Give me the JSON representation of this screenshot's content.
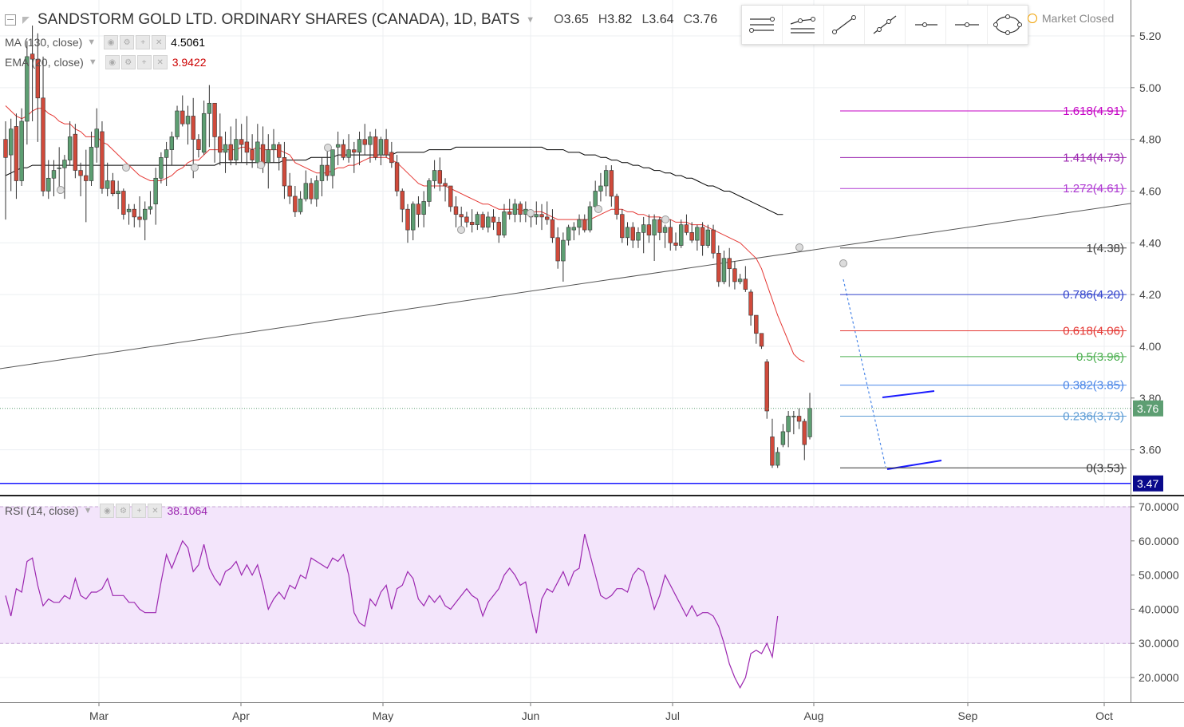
{
  "header": {
    "symbol_title": "SANDSTORM GOLD LTD. ORDINARY SHARES (CANADA), 1D, BATS",
    "ohlc": {
      "o_label": "O",
      "o": "3.65",
      "h_label": "H",
      "h": "3.82",
      "l_label": "L",
      "l": "3.64",
      "c_label": "C",
      "c": "3.76"
    },
    "market_status": "Market Closed"
  },
  "indicators": {
    "ma": {
      "label": "MA (130, close)",
      "value": "4.5061",
      "color": "#000000"
    },
    "ema": {
      "label": "EMA (20, close)",
      "value": "3.9422",
      "color": "#cc0000"
    },
    "rsi": {
      "label": "RSI (14, close)",
      "value": "38.1064",
      "color": "#9c27b0"
    }
  },
  "toolbar": {
    "tools": [
      "horizontal-lines-icon",
      "parallel-channel-icon",
      "trend-line-icon",
      "ray-icon",
      "horizontal-ray-icon",
      "horizontal-line-icon",
      "ellipse-icon"
    ]
  },
  "colors": {
    "up": "#5d9e72",
    "down": "#d04a3b",
    "ma": "#000000",
    "ema": "#e53935",
    "rsi": "#9c27b0",
    "rsi_band": "#f3e5fb",
    "support": "#1a1aff"
  },
  "chart_data": {
    "type": "candlestick",
    "x_axis": {
      "ticks": [
        "Mar",
        "Apr",
        "May",
        "Jun",
        "Jul",
        "Aug",
        "Sep",
        "Oct"
      ]
    },
    "y_axis": {
      "min": 3.44,
      "max": 5.27,
      "ticks": [
        "5.20",
        "5.00",
        "4.80",
        "4.60",
        "4.40",
        "4.20",
        "4.00",
        "3.80",
        "3.60"
      ]
    },
    "last_price": "3.76",
    "support_price": "3.47",
    "candles": [
      [
        4.8,
        4.87,
        4.49,
        4.73
      ],
      [
        4.74,
        4.88,
        4.6,
        4.84
      ],
      [
        4.85,
        4.9,
        4.57,
        4.64
      ],
      [
        4.64,
        4.92,
        4.62,
        4.87
      ],
      [
        4.87,
        5.18,
        4.78,
        5.12
      ],
      [
        5.13,
        5.24,
        4.87,
        5.11
      ],
      [
        5.11,
        5.21,
        4.79,
        4.96
      ],
      [
        4.96,
        5.12,
        4.58,
        4.6
      ],
      [
        4.6,
        4.72,
        4.57,
        4.65
      ],
      [
        4.65,
        4.72,
        4.58,
        4.68
      ],
      [
        4.69,
        4.77,
        4.59,
        4.69
      ],
      [
        4.69,
        4.74,
        4.57,
        4.72
      ],
      [
        4.72,
        4.87,
        4.7,
        4.81
      ],
      [
        4.82,
        4.86,
        4.65,
        4.68
      ],
      [
        4.68,
        4.71,
        4.58,
        4.66
      ],
      [
        4.66,
        4.76,
        4.48,
        4.64
      ],
      [
        4.64,
        4.83,
        4.62,
        4.77
      ],
      [
        4.77,
        4.92,
        4.71,
        4.84
      ],
      [
        4.83,
        4.87,
        4.59,
        4.61
      ],
      [
        4.61,
        4.71,
        4.58,
        4.64
      ],
      [
        4.64,
        4.67,
        4.58,
        4.59
      ],
      [
        4.59,
        4.64,
        4.53,
        4.6
      ],
      [
        4.6,
        4.61,
        4.49,
        4.51
      ],
      [
        4.52,
        4.55,
        4.47,
        4.53
      ],
      [
        4.53,
        4.55,
        4.46,
        4.5
      ],
      [
        4.5,
        4.58,
        4.46,
        4.49
      ],
      [
        4.49,
        4.56,
        4.41,
        4.53
      ],
      [
        4.53,
        4.6,
        4.51,
        4.54
      ],
      [
        4.55,
        4.69,
        4.47,
        4.65
      ],
      [
        4.65,
        4.75,
        4.63,
        4.73
      ],
      [
        4.73,
        4.79,
        4.62,
        4.76
      ],
      [
        4.76,
        4.83,
        4.7,
        4.81
      ],
      [
        4.81,
        4.93,
        4.8,
        4.91
      ],
      [
        4.91,
        4.97,
        4.85,
        4.86
      ],
      [
        4.86,
        4.93,
        4.78,
        4.89
      ],
      [
        4.89,
        4.96,
        4.65,
        4.8
      ],
      [
        4.8,
        4.82,
        4.73,
        4.76
      ],
      [
        4.75,
        4.95,
        4.74,
        4.9
      ],
      [
        4.9,
        5.01,
        4.77,
        4.94
      ],
      [
        4.94,
        4.94,
        4.71,
        4.81
      ],
      [
        4.81,
        4.9,
        4.7,
        4.75
      ],
      [
        4.75,
        4.83,
        4.67,
        4.78
      ],
      [
        4.78,
        4.85,
        4.7,
        4.72
      ],
      [
        4.72,
        4.88,
        4.7,
        4.8
      ],
      [
        4.8,
        4.86,
        4.71,
        4.78
      ],
      [
        4.79,
        4.89,
        4.7,
        4.75
      ],
      [
        4.76,
        4.82,
        4.69,
        4.72
      ],
      [
        4.71,
        4.86,
        4.69,
        4.79
      ],
      [
        4.78,
        4.85,
        4.67,
        4.7
      ],
      [
        4.71,
        4.82,
        4.61,
        4.76
      ],
      [
        4.76,
        4.84,
        4.71,
        4.78
      ],
      [
        4.78,
        4.79,
        4.68,
        4.73
      ],
      [
        4.73,
        4.79,
        4.57,
        4.62
      ],
      [
        4.62,
        4.67,
        4.55,
        4.58
      ],
      [
        4.58,
        4.62,
        4.5,
        4.52
      ],
      [
        4.52,
        4.6,
        4.51,
        4.57
      ],
      [
        4.57,
        4.68,
        4.56,
        4.63
      ],
      [
        4.63,
        4.65,
        4.55,
        4.57
      ],
      [
        4.57,
        4.66,
        4.54,
        4.64
      ],
      [
        4.64,
        4.73,
        4.58,
        4.7
      ],
      [
        4.7,
        4.77,
        4.64,
        4.66
      ],
      [
        4.66,
        4.76,
        4.61,
        4.76
      ],
      [
        4.77,
        4.83,
        4.7,
        4.78
      ],
      [
        4.78,
        4.8,
        4.72,
        4.73
      ],
      [
        4.73,
        4.82,
        4.71,
        4.76
      ],
      [
        4.76,
        4.79,
        4.67,
        4.75
      ],
      [
        4.75,
        4.83,
        4.7,
        4.8
      ],
      [
        4.8,
        4.86,
        4.74,
        4.78
      ],
      [
        4.78,
        4.83,
        4.71,
        4.81
      ],
      [
        4.81,
        4.84,
        4.72,
        4.73
      ],
      [
        4.74,
        4.81,
        4.7,
        4.8
      ],
      [
        4.8,
        4.84,
        4.73,
        4.74
      ],
      [
        4.75,
        4.79,
        4.69,
        4.71
      ],
      [
        4.71,
        4.74,
        4.58,
        4.6
      ],
      [
        4.6,
        4.61,
        4.48,
        4.53
      ],
      [
        4.53,
        4.55,
        4.4,
        4.45
      ],
      [
        4.45,
        4.56,
        4.41,
        4.55
      ],
      [
        4.55,
        4.58,
        4.46,
        4.51
      ],
      [
        4.51,
        4.6,
        4.46,
        4.56
      ],
      [
        4.56,
        4.65,
        4.54,
        4.64
      ],
      [
        4.64,
        4.72,
        4.61,
        4.68
      ],
      [
        4.68,
        4.73,
        4.6,
        4.63
      ],
      [
        4.63,
        4.65,
        4.56,
        4.62
      ],
      [
        4.62,
        4.62,
        4.52,
        4.54
      ],
      [
        4.54,
        4.58,
        4.46,
        4.51
      ],
      [
        4.51,
        4.54,
        4.46,
        4.5
      ],
      [
        4.5,
        4.52,
        4.46,
        4.48
      ],
      [
        4.48,
        4.53,
        4.44,
        4.47
      ],
      [
        4.47,
        4.52,
        4.45,
        4.51
      ],
      [
        4.51,
        4.52,
        4.45,
        4.46
      ],
      [
        4.46,
        4.52,
        4.44,
        4.5
      ],
      [
        4.5,
        4.53,
        4.45,
        4.48
      ],
      [
        4.48,
        4.5,
        4.4,
        4.43
      ],
      [
        4.43,
        4.55,
        4.42,
        4.52
      ],
      [
        4.52,
        4.57,
        4.49,
        4.51
      ],
      [
        4.51,
        4.57,
        4.48,
        4.55
      ],
      [
        4.55,
        4.56,
        4.48,
        4.51
      ],
      [
        4.51,
        4.56,
        4.48,
        4.53
      ],
      [
        4.52,
        4.53,
        4.46,
        4.5
      ],
      [
        4.5,
        4.56,
        4.47,
        4.51
      ],
      [
        4.51,
        4.55,
        4.45,
        4.5
      ],
      [
        4.5,
        4.56,
        4.47,
        4.49
      ],
      [
        4.49,
        4.53,
        4.4,
        4.42
      ],
      [
        4.42,
        4.46,
        4.3,
        4.33
      ],
      [
        4.33,
        4.44,
        4.25,
        4.41
      ],
      [
        4.41,
        4.47,
        4.39,
        4.46
      ],
      [
        4.45,
        4.48,
        4.41,
        4.46
      ],
      [
        4.46,
        4.51,
        4.43,
        4.49
      ],
      [
        4.49,
        4.51,
        4.44,
        4.45
      ],
      [
        4.45,
        4.56,
        4.44,
        4.54
      ],
      [
        4.54,
        4.64,
        4.53,
        4.6
      ],
      [
        4.6,
        4.67,
        4.56,
        4.62
      ],
      [
        4.62,
        4.7,
        4.58,
        4.68
      ],
      [
        4.68,
        4.7,
        4.54,
        4.58
      ],
      [
        4.58,
        4.59,
        4.49,
        4.51
      ],
      [
        4.51,
        4.53,
        4.4,
        4.42
      ],
      [
        4.42,
        4.48,
        4.39,
        4.46
      ],
      [
        4.46,
        4.48,
        4.38,
        4.41
      ],
      [
        4.41,
        4.46,
        4.38,
        4.44
      ],
      [
        4.44,
        4.5,
        4.36,
        4.47
      ],
      [
        4.47,
        4.51,
        4.4,
        4.43
      ],
      [
        4.43,
        4.51,
        4.33,
        4.49
      ],
      [
        4.49,
        4.5,
        4.41,
        4.44
      ],
      [
        4.44,
        4.47,
        4.38,
        4.46
      ],
      [
        4.46,
        4.49,
        4.37,
        4.4
      ],
      [
        4.4,
        4.44,
        4.37,
        4.39
      ],
      [
        4.39,
        4.49,
        4.38,
        4.47
      ],
      [
        4.47,
        4.51,
        4.43,
        4.44
      ],
      [
        4.44,
        4.48,
        4.4,
        4.41
      ],
      [
        4.41,
        4.47,
        4.37,
        4.46
      ],
      [
        4.46,
        4.48,
        4.35,
        4.39
      ],
      [
        4.39,
        4.47,
        4.38,
        4.45
      ],
      [
        4.45,
        4.47,
        4.34,
        4.36
      ],
      [
        4.36,
        4.39,
        4.23,
        4.25
      ],
      [
        4.25,
        4.37,
        4.24,
        4.34
      ],
      [
        4.34,
        4.38,
        4.23,
        4.3
      ],
      [
        4.3,
        4.33,
        4.22,
        4.25
      ],
      [
        4.25,
        4.28,
        4.24,
        4.26
      ],
      [
        4.26,
        4.31,
        4.21,
        4.22
      ],
      [
        4.21,
        4.22,
        4.08,
        4.12
      ],
      [
        4.12,
        4.12,
        4.01,
        4.05
      ],
      [
        4.05,
        4.05,
        3.99,
        4.0
      ],
      [
        3.94,
        3.95,
        3.72,
        3.75
      ],
      [
        3.65,
        3.72,
        3.53,
        3.54
      ],
      [
        3.54,
        3.61,
        3.53,
        3.59
      ],
      [
        3.62,
        3.7,
        3.61,
        3.67
      ],
      [
        3.67,
        3.75,
        3.61,
        3.73
      ],
      [
        3.73,
        3.75,
        3.66,
        3.73
      ],
      [
        3.73,
        3.76,
        3.68,
        3.71
      ],
      [
        3.71,
        3.72,
        3.56,
        3.62
      ],
      [
        3.65,
        3.82,
        3.64,
        3.76
      ]
    ],
    "ma_values": [
      4.66,
      4.67,
      4.68,
      4.69,
      4.69,
      4.7,
      4.7,
      4.7,
      4.7,
      4.7,
      4.7,
      4.7,
      4.7,
      4.7,
      4.7,
      4.7,
      4.7,
      4.7,
      4.7,
      4.7,
      4.7,
      4.7,
      4.7,
      4.7,
      4.7,
      4.7,
      4.7,
      4.7,
      4.7,
      4.7,
      4.7,
      4.7,
      4.7,
      4.7,
      4.7,
      4.7,
      4.7,
      4.7,
      4.7,
      4.7,
      4.71,
      4.71,
      4.71,
      4.71,
      4.71,
      4.71,
      4.71,
      4.71,
      4.71,
      4.71,
      4.71,
      4.71,
      4.72,
      4.72,
      4.72,
      4.72,
      4.72,
      4.73,
      4.73,
      4.73,
      4.73,
      4.73,
      4.74,
      4.74,
      4.74,
      4.74,
      4.74,
      4.74,
      4.74,
      4.74,
      4.74,
      4.74,
      4.74,
      4.75,
      4.75,
      4.75,
      4.75,
      4.75,
      4.75,
      4.76,
      4.76,
      4.76,
      4.76,
      4.76,
      4.77,
      4.77,
      4.77,
      4.77,
      4.77,
      4.77,
      4.77,
      4.77,
      4.77,
      4.77,
      4.77,
      4.77,
      4.77,
      4.77,
      4.77,
      4.77,
      4.77,
      4.76,
      4.76,
      4.76,
      4.76,
      4.75,
      4.75,
      4.75,
      4.74,
      4.74,
      4.74,
      4.73,
      4.73,
      4.72,
      4.72,
      4.71,
      4.71,
      4.7,
      4.7,
      4.69,
      4.69,
      4.68,
      4.68,
      4.67,
      4.67,
      4.66,
      4.66,
      4.65,
      4.65,
      4.64,
      4.63,
      4.62,
      4.62,
      4.61,
      4.6,
      4.6,
      4.59,
      4.58,
      4.57,
      4.56,
      4.55,
      4.54,
      4.53,
      4.52,
      4.51,
      4.51
    ],
    "ema_values": [
      4.93,
      4.91,
      4.89,
      4.88,
      4.89,
      4.91,
      4.92,
      4.92,
      4.9,
      4.89,
      4.87,
      4.86,
      4.86,
      4.84,
      4.83,
      4.81,
      4.81,
      4.81,
      4.79,
      4.78,
      4.76,
      4.74,
      4.72,
      4.7,
      4.68,
      4.66,
      4.65,
      4.64,
      4.64,
      4.64,
      4.65,
      4.66,
      4.68,
      4.69,
      4.71,
      4.72,
      4.72,
      4.74,
      4.76,
      4.76,
      4.76,
      4.76,
      4.76,
      4.76,
      4.77,
      4.77,
      4.76,
      4.77,
      4.76,
      4.76,
      4.76,
      4.76,
      4.75,
      4.74,
      4.71,
      4.7,
      4.69,
      4.68,
      4.67,
      4.67,
      4.67,
      4.68,
      4.69,
      4.69,
      4.7,
      4.7,
      4.71,
      4.72,
      4.73,
      4.73,
      4.73,
      4.73,
      4.72,
      4.71,
      4.69,
      4.67,
      4.65,
      4.63,
      4.62,
      4.62,
      4.62,
      4.62,
      4.62,
      4.61,
      4.6,
      4.59,
      4.58,
      4.57,
      4.56,
      4.55,
      4.55,
      4.54,
      4.53,
      4.53,
      4.53,
      4.53,
      4.53,
      4.52,
      4.52,
      4.52,
      4.52,
      4.51,
      4.5,
      4.49,
      4.49,
      4.49,
      4.49,
      4.49,
      4.49,
      4.49,
      4.5,
      4.51,
      4.52,
      4.53,
      4.53,
      4.53,
      4.52,
      4.52,
      4.51,
      4.51,
      4.5,
      4.5,
      4.5,
      4.49,
      4.49,
      4.48,
      4.48,
      4.48,
      4.47,
      4.47,
      4.47,
      4.46,
      4.45,
      4.44,
      4.43,
      4.42,
      4.41,
      4.4,
      4.38,
      4.36,
      4.34,
      4.3,
      4.24,
      4.18,
      4.12,
      4.07,
      4.02,
      3.97,
      3.95,
      3.94
    ],
    "rsi_values": [
      44,
      38,
      46,
      45,
      54,
      55,
      47,
      41,
      43,
      42,
      42,
      44,
      43,
      49,
      44,
      43,
      45,
      45,
      46,
      49,
      44,
      44,
      44,
      42,
      42,
      40,
      39,
      39,
      39,
      48,
      56,
      52,
      56,
      60,
      58,
      51,
      53,
      59,
      52,
      49,
      47,
      51,
      52,
      54,
      50,
      53,
      50,
      53,
      47,
      40,
      43,
      45,
      43,
      47,
      46,
      50,
      49,
      55,
      54,
      53,
      52,
      55,
      54,
      56,
      50,
      39,
      36,
      35,
      43,
      41,
      45,
      47,
      40,
      46,
      47,
      51,
      49,
      43,
      41,
      44,
      42,
      44,
      41,
      40,
      42,
      44,
      46,
      44,
      43,
      38,
      42,
      44,
      46,
      50,
      52,
      50,
      47,
      48,
      40,
      33,
      43,
      46,
      45,
      48,
      51,
      47,
      51,
      52,
      62,
      56,
      50,
      44,
      43,
      44,
      46,
      46,
      45,
      50,
      52,
      51,
      46,
      40,
      44,
      50,
      47,
      44,
      41,
      38,
      41,
      38,
      39,
      39,
      38,
      35,
      30,
      24,
      20,
      17,
      20,
      27,
      28,
      27,
      30,
      26,
      38
    ],
    "rsi_axis": {
      "min": 14,
      "max": 71,
      "ticks": [
        "70.0000",
        "60.0000",
        "50.0000",
        "40.0000",
        "30.0000",
        "20.0000"
      ],
      "upper_band": 70,
      "lower_band": 30
    },
    "fibonacci": [
      {
        "label": "1.618(4.91)",
        "price": 4.91,
        "color": "#c400c4"
      },
      {
        "label": "1.414(4.73)",
        "price": 4.73,
        "color": "#9c27b0"
      },
      {
        "label": "1.272(4.61)",
        "price": 4.61,
        "color": "#b03ad3"
      },
      {
        "label": "1(4.38)",
        "price": 4.38,
        "color": "#444444"
      },
      {
        "label": "0.786(4.20)",
        "price": 4.2,
        "color": "#3344cc"
      },
      {
        "label": "0.618(4.06)",
        "price": 4.06,
        "color": "#e53935"
      },
      {
        "label": "0.5(3.96)",
        "price": 3.96,
        "color": "#4caf50"
      },
      {
        "label": "0.382(3.85)",
        "price": 3.85,
        "color": "#4a86e8"
      },
      {
        "label": "0.236(3.73)",
        "price": 3.73,
        "color": "#5b9bd5"
      },
      {
        "label": "0(3.53)",
        "price": 3.53,
        "color": "#333333"
      }
    ]
  }
}
